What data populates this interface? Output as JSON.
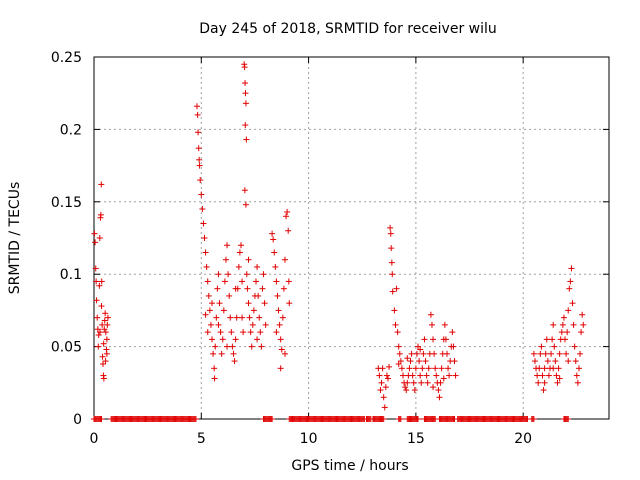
{
  "chart_data": {
    "type": "scatter",
    "title": "Day 245 of 2018, SRMTID for receiver wilu",
    "xlabel": "GPS time / hours",
    "ylabel": "SRMTID / TECUs",
    "xlim": [
      0,
      24
    ],
    "ylim": [
      0,
      0.25
    ],
    "xticks": [
      0,
      5,
      10,
      15,
      20
    ],
    "xtick_labels": [
      "0",
      "5",
      "10",
      "15",
      "20"
    ],
    "yticks": [
      0,
      0.05,
      0.1,
      0.15,
      0.2,
      0.25
    ],
    "ytick_labels": [
      "0",
      "0.05",
      "0.1",
      "0.15",
      "0.2",
      "0.25"
    ],
    "grid": true,
    "marker": "+",
    "color": "#e00000",
    "series": [
      {
        "name": "SRMTID",
        "points": [
          [
            0.02,
            0.128
          ],
          [
            0.05,
            0.122
          ],
          [
            0.08,
            0.104
          ],
          [
            0.1,
            0.095
          ],
          [
            0.12,
            0.082
          ],
          [
            0.15,
            0.07
          ],
          [
            0.18,
            0.062
          ],
          [
            0.2,
            0.05
          ],
          [
            0.22,
            0.058
          ],
          [
            0.25,
            0.092
          ],
          [
            0.27,
            0.125
          ],
          [
            0.3,
            0.139
          ],
          [
            0.32,
            0.141
          ],
          [
            0.34,
            0.162
          ],
          [
            0.36,
            0.095
          ],
          [
            0.38,
            0.065
          ],
          [
            0.4,
            0.043
          ],
          [
            0.42,
            0.038
          ],
          [
            0.45,
            0.052
          ],
          [
            0.48,
            0.062
          ],
          [
            0.5,
            0.068
          ],
          [
            0.52,
            0.073
          ],
          [
            0.55,
            0.06
          ],
          [
            0.58,
            0.048
          ],
          [
            0.6,
            0.055
          ],
          [
            0.62,
            0.065
          ],
          [
            0.65,
            0.07
          ],
          [
            0.35,
            0.078
          ],
          [
            0.28,
            0.06
          ],
          [
            0.44,
            0.03
          ],
          [
            0.46,
            0.028
          ],
          [
            0.54,
            0.04
          ],
          [
            0.6,
            0.045
          ],
          [
            4.8,
            0.216
          ],
          [
            4.83,
            0.21
          ],
          [
            4.85,
            0.198
          ],
          [
            4.88,
            0.187
          ],
          [
            4.9,
            0.179
          ],
          [
            4.92,
            0.175
          ],
          [
            4.95,
            0.165
          ],
          [
            5.0,
            0.155
          ],
          [
            5.05,
            0.145
          ],
          [
            5.1,
            0.135
          ],
          [
            5.15,
            0.125
          ],
          [
            5.2,
            0.115
          ],
          [
            5.25,
            0.105
          ],
          [
            5.3,
            0.095
          ],
          [
            5.35,
            0.085
          ],
          [
            5.4,
            0.075
          ],
          [
            5.45,
            0.065
          ],
          [
            5.5,
            0.055
          ],
          [
            5.55,
            0.045
          ],
          [
            5.6,
            0.035
          ],
          [
            5.62,
            0.028
          ],
          [
            5.65,
            0.05
          ],
          [
            5.7,
            0.07
          ],
          [
            5.75,
            0.09
          ],
          [
            5.8,
            0.1
          ],
          [
            5.85,
            0.08
          ],
          [
            5.9,
            0.06
          ],
          [
            5.95,
            0.045
          ],
          [
            6.0,
            0.055
          ],
          [
            6.05,
            0.075
          ],
          [
            6.1,
            0.095
          ],
          [
            6.15,
            0.11
          ],
          [
            6.2,
            0.12
          ],
          [
            6.25,
            0.1
          ],
          [
            6.3,
            0.085
          ],
          [
            6.35,
            0.07
          ],
          [
            6.4,
            0.06
          ],
          [
            6.45,
            0.05
          ],
          [
            6.5,
            0.045
          ],
          [
            6.55,
            0.04
          ],
          [
            6.6,
            0.055
          ],
          [
            6.65,
            0.07
          ],
          [
            6.7,
            0.09
          ],
          [
            6.75,
            0.105
          ],
          [
            6.8,
            0.115
          ],
          [
            6.85,
            0.12
          ],
          [
            6.9,
            0.07
          ],
          [
            6.95,
            0.06
          ],
          [
            7.0,
            0.245
          ],
          [
            7.02,
            0.243
          ],
          [
            7.04,
            0.232
          ],
          [
            7.06,
            0.225
          ],
          [
            7.08,
            0.218
          ],
          [
            7.05,
            0.203
          ],
          [
            7.1,
            0.193
          ],
          [
            7.03,
            0.158
          ],
          [
            7.08,
            0.148
          ],
          [
            7.12,
            0.1
          ],
          [
            7.15,
            0.09
          ],
          [
            7.2,
            0.08
          ],
          [
            7.25,
            0.07
          ],
          [
            7.3,
            0.06
          ],
          [
            7.35,
            0.05
          ],
          [
            7.4,
            0.065
          ],
          [
            7.45,
            0.075
          ],
          [
            7.5,
            0.085
          ],
          [
            7.55,
            0.095
          ],
          [
            7.6,
            0.105
          ],
          [
            7.65,
            0.085
          ],
          [
            7.7,
            0.07
          ],
          [
            7.75,
            0.06
          ],
          [
            7.8,
            0.05
          ],
          [
            7.85,
            0.09
          ],
          [
            7.9,
            0.1
          ],
          [
            7.95,
            0.08
          ],
          [
            8.0,
            0.065
          ],
          [
            5.3,
            0.06
          ],
          [
            5.5,
            0.08
          ],
          [
            5.8,
            0.065
          ],
          [
            6.2,
            0.05
          ],
          [
            6.6,
            0.09
          ],
          [
            7.2,
            0.11
          ],
          [
            7.6,
            0.055
          ],
          [
            5.2,
            0.072
          ],
          [
            6.9,
            0.095
          ],
          [
            8.3,
            0.128
          ],
          [
            8.35,
            0.124
          ],
          [
            8.4,
            0.115
          ],
          [
            8.45,
            0.105
          ],
          [
            8.5,
            0.095
          ],
          [
            8.55,
            0.085
          ],
          [
            8.6,
            0.075
          ],
          [
            8.65,
            0.065
          ],
          [
            8.7,
            0.055
          ],
          [
            8.75,
            0.048
          ],
          [
            8.8,
            0.07
          ],
          [
            8.85,
            0.09
          ],
          [
            8.9,
            0.11
          ],
          [
            8.95,
            0.14
          ],
          [
            9.0,
            0.143
          ],
          [
            9.05,
            0.13
          ],
          [
            9.08,
            0.095
          ],
          [
            9.1,
            0.08
          ],
          [
            8.7,
            0.035
          ],
          [
            8.9,
            0.045
          ],
          [
            8.5,
            0.06
          ],
          [
            13.25,
            0.035
          ],
          [
            13.3,
            0.03
          ],
          [
            13.35,
            0.02
          ],
          [
            13.4,
            0.025
          ],
          [
            13.45,
            0.035
          ],
          [
            13.5,
            0.015
          ],
          [
            13.55,
            0.008
          ],
          [
            13.6,
            0.022
          ],
          [
            13.65,
            0.03
          ],
          [
            13.7,
            0.028
          ],
          [
            13.75,
            0.036
          ],
          [
            13.8,
            0.132
          ],
          [
            13.83,
            0.128
          ],
          [
            13.85,
            0.118
          ],
          [
            13.88,
            0.108
          ],
          [
            13.9,
            0.1
          ],
          [
            13.92,
            0.088
          ],
          [
            14.0,
            0.075
          ],
          [
            14.05,
            0.065
          ],
          [
            14.1,
            0.09
          ],
          [
            14.15,
            0.06
          ],
          [
            14.2,
            0.05
          ],
          [
            14.25,
            0.045
          ],
          [
            14.3,
            0.04
          ],
          [
            14.35,
            0.035
          ],
          [
            14.4,
            0.03
          ],
          [
            14.45,
            0.025
          ],
          [
            14.5,
            0.022
          ],
          [
            14.55,
            0.02
          ],
          [
            14.6,
            0.025
          ],
          [
            14.65,
            0.03
          ],
          [
            14.7,
            0.035
          ],
          [
            14.75,
            0.04
          ],
          [
            14.8,
            0.045
          ],
          [
            14.85,
            0.03
          ],
          [
            14.9,
            0.025
          ],
          [
            14.95,
            0.02
          ],
          [
            15.0,
            0.035
          ],
          [
            15.05,
            0.045
          ],
          [
            15.1,
            0.05
          ],
          [
            15.15,
            0.04
          ],
          [
            15.2,
            0.03
          ],
          [
            15.25,
            0.025
          ],
          [
            15.3,
            0.035
          ],
          [
            15.35,
            0.045
          ],
          [
            15.4,
            0.055
          ],
          [
            15.45,
            0.04
          ],
          [
            15.5,
            0.03
          ],
          [
            15.55,
            0.025
          ],
          [
            15.6,
            0.035
          ],
          [
            15.65,
            0.045
          ],
          [
            15.7,
            0.072
          ],
          [
            15.75,
            0.065
          ],
          [
            15.8,
            0.055
          ],
          [
            15.85,
            0.045
          ],
          [
            15.9,
            0.035
          ],
          [
            15.95,
            0.03
          ],
          [
            16.0,
            0.025
          ],
          [
            16.05,
            0.02
          ],
          [
            16.1,
            0.015
          ],
          [
            16.15,
            0.025
          ],
          [
            16.2,
            0.035
          ],
          [
            16.25,
            0.045
          ],
          [
            16.3,
            0.055
          ],
          [
            16.35,
            0.065
          ],
          [
            16.4,
            0.055
          ],
          [
            16.45,
            0.045
          ],
          [
            16.5,
            0.035
          ],
          [
            16.55,
            0.03
          ],
          [
            16.6,
            0.04
          ],
          [
            16.65,
            0.05
          ],
          [
            16.7,
            0.06
          ],
          [
            16.75,
            0.05
          ],
          [
            16.8,
            0.04
          ],
          [
            16.85,
            0.03
          ],
          [
            14.2,
            0.038
          ],
          [
            14.6,
            0.042
          ],
          [
            15.2,
            0.048
          ],
          [
            15.8,
            0.022
          ],
          [
            16.3,
            0.028
          ],
          [
            20.5,
            0.045
          ],
          [
            20.55,
            0.04
          ],
          [
            20.6,
            0.035
          ],
          [
            20.65,
            0.03
          ],
          [
            20.7,
            0.025
          ],
          [
            20.75,
            0.035
          ],
          [
            20.8,
            0.045
          ],
          [
            20.85,
            0.05
          ],
          [
            20.9,
            0.03
          ],
          [
            20.95,
            0.02
          ],
          [
            21.0,
            0.035
          ],
          [
            21.05,
            0.045
          ],
          [
            21.1,
            0.055
          ],
          [
            21.15,
            0.04
          ],
          [
            21.2,
            0.03
          ],
          [
            21.25,
            0.035
          ],
          [
            21.3,
            0.045
          ],
          [
            21.35,
            0.055
          ],
          [
            21.4,
            0.065
          ],
          [
            21.45,
            0.05
          ],
          [
            21.5,
            0.04
          ],
          [
            21.55,
            0.03
          ],
          [
            21.6,
            0.025
          ],
          [
            21.65,
            0.035
          ],
          [
            21.7,
            0.045
          ],
          [
            21.75,
            0.055
          ],
          [
            21.8,
            0.06
          ],
          [
            21.85,
            0.065
          ],
          [
            21.9,
            0.07
          ],
          [
            21.95,
            0.055
          ],
          [
            22.0,
            0.045
          ],
          [
            22.05,
            0.06
          ],
          [
            22.1,
            0.075
          ],
          [
            22.15,
            0.09
          ],
          [
            22.2,
            0.095
          ],
          [
            22.25,
            0.104
          ],
          [
            22.3,
            0.08
          ],
          [
            22.35,
            0.065
          ],
          [
            22.4,
            0.05
          ],
          [
            22.45,
            0.04
          ],
          [
            22.5,
            0.03
          ],
          [
            22.55,
            0.025
          ],
          [
            22.6,
            0.035
          ],
          [
            22.65,
            0.045
          ],
          [
            22.7,
            0.06
          ],
          [
            22.75,
            0.072
          ],
          [
            22.8,
            0.065
          ],
          [
            21.0,
            0.025
          ],
          [
            21.4,
            0.035
          ],
          [
            21.7,
            0.028
          ],
          [
            22.1,
            0.04
          ]
        ],
        "zero_ranges": [
          [
            0.0,
            0.35
          ],
          [
            0.8,
            4.75
          ],
          [
            7.9,
            8.3
          ],
          [
            9.1,
            12.6
          ],
          [
            12.7,
            12.9
          ],
          [
            13.0,
            13.5
          ],
          [
            14.2,
            14.3
          ],
          [
            14.6,
            15.1
          ],
          [
            15.4,
            15.9
          ],
          [
            16.1,
            16.8
          ],
          [
            16.95,
            20.2
          ],
          [
            20.4,
            20.5
          ],
          [
            21.9,
            22.1
          ]
        ]
      }
    ]
  }
}
